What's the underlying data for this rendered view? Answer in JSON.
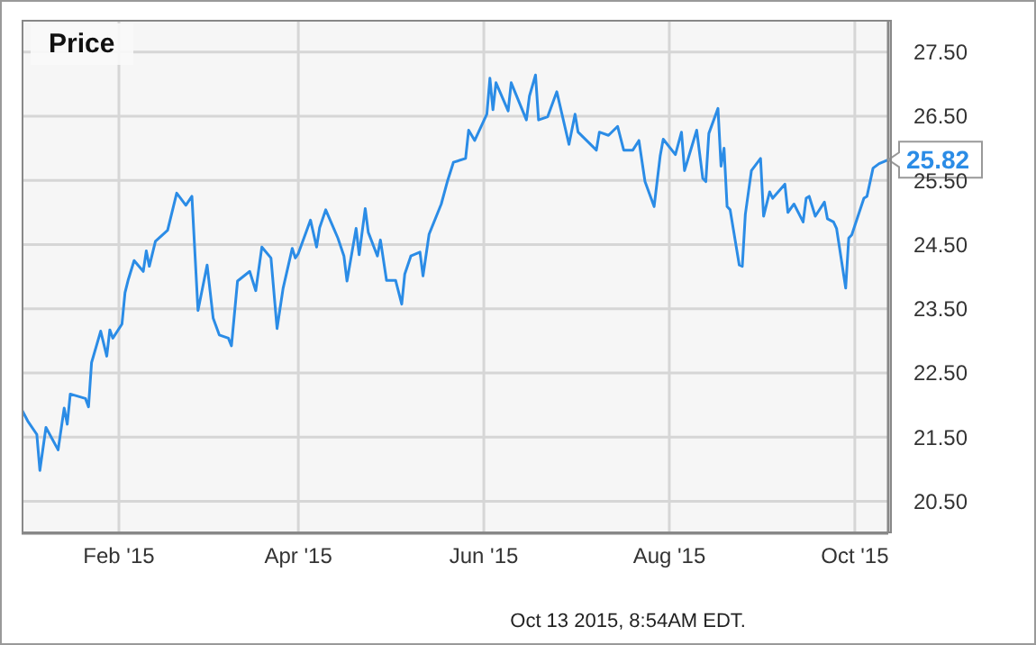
{
  "chart_data": {
    "type": "line",
    "title": "Price",
    "x": [
      "2014-12-31",
      "2015-01-02",
      "2015-01-05",
      "2015-01-06",
      "2015-01-08",
      "2015-01-12",
      "2015-01-14",
      "2015-01-15",
      "2015-01-16",
      "2015-01-21",
      "2015-01-22",
      "2015-01-23",
      "2015-01-26",
      "2015-01-28",
      "2015-01-29",
      "2015-01-30",
      "2015-02-02",
      "2015-02-03",
      "2015-02-04",
      "2015-02-06",
      "2015-02-09",
      "2015-02-10",
      "2015-02-11",
      "2015-02-13",
      "2015-02-17",
      "2015-02-20",
      "2015-02-23",
      "2015-02-25",
      "2015-02-27",
      "2015-03-02",
      "2015-03-04",
      "2015-03-06",
      "2015-03-09",
      "2015-03-10",
      "2015-03-12",
      "2015-03-16",
      "2015-03-18",
      "2015-03-20",
      "2015-03-23",
      "2015-03-25",
      "2015-03-27",
      "2015-03-30",
      "2015-03-31",
      "2015-04-01",
      "2015-04-05",
      "2015-04-07",
      "2015-04-08",
      "2015-04-10",
      "2015-04-14",
      "2015-04-16",
      "2015-04-17",
      "2015-04-20",
      "2015-04-21",
      "2015-04-23",
      "2015-04-24",
      "2015-04-27",
      "2015-04-28",
      "2015-04-30",
      "2015-05-03",
      "2015-05-05",
      "2015-05-06",
      "2015-05-08",
      "2015-05-11",
      "2015-05-12",
      "2015-05-14",
      "2015-05-18",
      "2015-05-20",
      "2015-05-22",
      "2015-05-26",
      "2015-05-27",
      "2015-05-29",
      "2015-06-02",
      "2015-06-03",
      "2015-06-04",
      "2015-06-05",
      "2015-06-09",
      "2015-06-10",
      "2015-06-15",
      "2015-06-16",
      "2015-06-18",
      "2015-06-19",
      "2015-06-22",
      "2015-06-25",
      "2015-06-29",
      "2015-07-01",
      "2015-07-02",
      "2015-07-08",
      "2015-07-09",
      "2015-07-12",
      "2015-07-15",
      "2015-07-17",
      "2015-07-20",
      "2015-07-22",
      "2015-07-24",
      "2015-07-27",
      "2015-07-29",
      "2015-07-30",
      "2015-08-03",
      "2015-08-05",
      "2015-08-06",
      "2015-08-10",
      "2015-08-12",
      "2015-08-13",
      "2015-08-14",
      "2015-08-17",
      "2015-08-18",
      "2015-08-19",
      "2015-08-20",
      "2015-08-21",
      "2015-08-24",
      "2015-08-25",
      "2015-08-26",
      "2015-08-28",
      "2015-08-31",
      "2015-09-01",
      "2015-09-03",
      "2015-09-04",
      "2015-09-08",
      "2015-09-09",
      "2015-09-11",
      "2015-09-14",
      "2015-09-15",
      "2015-09-16",
      "2015-09-18",
      "2015-09-21",
      "2015-09-22",
      "2015-09-24",
      "2015-09-25",
      "2015-09-28",
      "2015-09-29",
      "2015-09-30",
      "2015-10-04",
      "2015-10-05",
      "2015-10-07",
      "2015-10-09",
      "2015-10-12"
    ],
    "series": [
      {
        "color": "#2b8ce6",
        "values": [
          21.93,
          21.75,
          21.54,
          20.98,
          21.65,
          21.3,
          21.95,
          21.7,
          22.17,
          22.1,
          21.97,
          22.66,
          23.15,
          22.76,
          23.17,
          23.04,
          23.26,
          23.75,
          23.94,
          24.25,
          24.08,
          24.4,
          24.16,
          24.55,
          24.72,
          25.3,
          25.11,
          25.25,
          23.47,
          24.18,
          23.35,
          23.09,
          23.04,
          22.92,
          23.93,
          24.08,
          23.78,
          24.46,
          24.29,
          23.19,
          23.82,
          24.44,
          24.29,
          24.36,
          24.88,
          24.46,
          24.76,
          25.04,
          24.6,
          24.32,
          23.93,
          24.75,
          24.34,
          25.06,
          24.69,
          24.32,
          24.57,
          23.94,
          23.94,
          23.57,
          24.04,
          24.32,
          24.38,
          24.01,
          24.66,
          25.13,
          25.48,
          25.78,
          25.84,
          26.28,
          26.12,
          26.53,
          27.09,
          26.6,
          27.02,
          26.58,
          27.02,
          26.44,
          26.81,
          27.14,
          26.44,
          26.49,
          26.88,
          26.06,
          26.53,
          26.25,
          25.97,
          26.25,
          26.2,
          26.34,
          25.97,
          25.97,
          26.12,
          25.48,
          25.09,
          25.88,
          26.14,
          25.9,
          26.25,
          25.65,
          26.28,
          25.53,
          25.48,
          26.23,
          26.62,
          25.72,
          26.0,
          25.09,
          25.04,
          24.18,
          24.16,
          24.97,
          25.65,
          25.84,
          24.94,
          25.32,
          25.22,
          25.44,
          25.0,
          25.13,
          24.85,
          25.22,
          25.25,
          24.94,
          25.16,
          24.9,
          24.85,
          24.75,
          23.82,
          24.6,
          24.65,
          25.22,
          25.25,
          25.69,
          25.76,
          25.82
        ]
      }
    ],
    "xlim": [
      "2014-12-31",
      "2015-10-12"
    ],
    "xticks": [
      {
        "value": "2015-02-01",
        "label": "Feb '15"
      },
      {
        "value": "2015-04-01",
        "label": "Apr '15"
      },
      {
        "value": "2015-06-01",
        "label": "Jun '15"
      },
      {
        "value": "2015-08-01",
        "label": "Aug '15"
      },
      {
        "value": "2015-10-01",
        "label": "Oct '15"
      }
    ],
    "ylim": [
      20,
      28
    ],
    "yticks": [
      {
        "value": 20.5,
        "label": "20.50"
      },
      {
        "value": 21.5,
        "label": "21.50"
      },
      {
        "value": 22.5,
        "label": "22.50"
      },
      {
        "value": 23.5,
        "label": "23.50"
      },
      {
        "value": 24.5,
        "label": "24.50"
      },
      {
        "value": 25.5,
        "label": "25.50"
      },
      {
        "value": 26.5,
        "label": "26.50"
      },
      {
        "value": 27.5,
        "label": "27.50"
      }
    ],
    "grid": true,
    "marker": "none",
    "line_style": "solid",
    "annotations": [
      {
        "text": "25.82",
        "x": "2015-10-12",
        "y": 25.82
      },
      "Oct 13 2015, 8:54AM EDT."
    ]
  }
}
